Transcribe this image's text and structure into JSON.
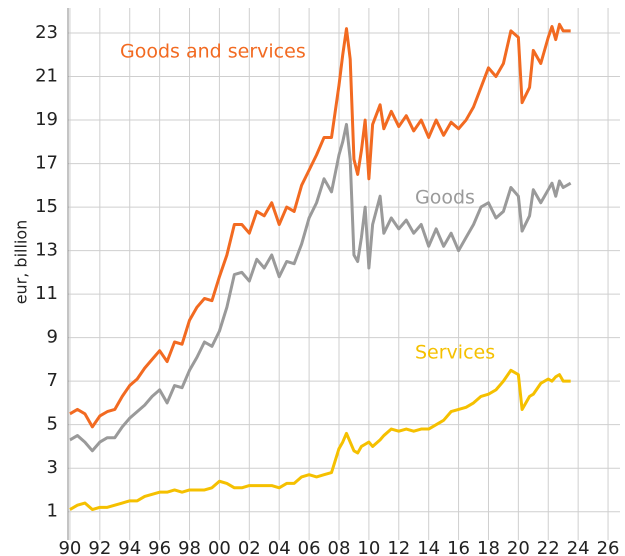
{
  "chart_data": {
    "type": "line",
    "y_label": "eur, billion",
    "x": [
      1990,
      1990.5,
      1991,
      1991.5,
      1992,
      1992.5,
      1993,
      1993.5,
      1994,
      1994.5,
      1995,
      1995.5,
      1996,
      1996.5,
      1997,
      1997.5,
      1998,
      1998.5,
      1999,
      1999.5,
      2000,
      2000.5,
      2001,
      2001.5,
      2002,
      2002.5,
      2003,
      2003.5,
      2004,
      2004.5,
      2005,
      2005.5,
      2006,
      2006.5,
      2007,
      2007.5,
      2008,
      2008.25,
      2008.5,
      2008.75,
      2009,
      2009.25,
      2009.5,
      2009.75,
      2010,
      2010.25,
      2010.75,
      2011,
      2011.5,
      2012,
      2012.5,
      2013,
      2013.5,
      2014,
      2014.5,
      2015,
      2015.5,
      2016,
      2016.5,
      2017,
      2017.5,
      2018,
      2018.5,
      2019,
      2019.5,
      2020,
      2020.25,
      2020.75,
      2021,
      2021.5,
      2022,
      2022.25,
      2022.5,
      2022.75,
      2023,
      2023.5
    ],
    "series": [
      {
        "name": "Goods and services",
        "color": "#f26a21",
        "values": [
          5.5,
          5.7,
          5.5,
          4.9,
          5.4,
          5.6,
          5.7,
          6.3,
          6.8,
          7.1,
          7.6,
          8.0,
          8.4,
          7.9,
          8.8,
          8.7,
          9.8,
          10.4,
          10.8,
          10.7,
          11.8,
          12.8,
          14.2,
          14.2,
          13.8,
          14.8,
          14.6,
          15.2,
          14.2,
          15.0,
          14.8,
          16.0,
          16.7,
          17.4,
          18.2,
          18.2,
          20.6,
          22.0,
          23.2,
          21.8,
          17.2,
          16.5,
          17.6,
          19.0,
          16.3,
          18.8,
          19.7,
          18.6,
          19.4,
          18.7,
          19.2,
          18.5,
          19.0,
          18.2,
          19.0,
          18.3,
          18.9,
          18.6,
          19.0,
          19.6,
          20.5,
          21.4,
          21.0,
          21.6,
          23.1,
          22.8,
          19.8,
          20.5,
          22.2,
          21.6,
          22.8,
          23.3,
          22.7,
          23.4,
          23.1,
          23.1
        ]
      },
      {
        "name": "Goods",
        "color": "#9a9a9a",
        "values": [
          4.3,
          4.5,
          4.2,
          3.8,
          4.2,
          4.4,
          4.4,
          4.9,
          5.3,
          5.6,
          5.9,
          6.3,
          6.6,
          6.0,
          6.8,
          6.7,
          7.5,
          8.1,
          8.8,
          8.6,
          9.3,
          10.4,
          11.9,
          12.0,
          11.6,
          12.6,
          12.2,
          12.8,
          11.8,
          12.5,
          12.4,
          13.3,
          14.5,
          15.2,
          16.3,
          15.7,
          17.4,
          18.0,
          18.8,
          17.2,
          12.8,
          12.5,
          13.6,
          15.0,
          12.2,
          14.2,
          15.5,
          13.8,
          14.5,
          14.0,
          14.4,
          13.8,
          14.2,
          13.2,
          14.0,
          13.2,
          13.8,
          13.0,
          13.6,
          14.2,
          15.0,
          15.2,
          14.5,
          14.8,
          15.9,
          15.5,
          13.9,
          14.6,
          15.8,
          15.2,
          15.8,
          16.1,
          15.5,
          16.2,
          15.9,
          16.1
        ]
      },
      {
        "name": "Services",
        "color": "#f5c000",
        "values": [
          1.1,
          1.3,
          1.4,
          1.1,
          1.2,
          1.2,
          1.3,
          1.4,
          1.5,
          1.5,
          1.7,
          1.8,
          1.9,
          1.9,
          2.0,
          1.9,
          2.0,
          2.0,
          2.0,
          2.1,
          2.4,
          2.3,
          2.1,
          2.1,
          2.2,
          2.2,
          2.2,
          2.2,
          2.1,
          2.3,
          2.3,
          2.6,
          2.7,
          2.6,
          2.7,
          2.8,
          3.9,
          4.2,
          4.6,
          4.2,
          3.8,
          3.7,
          4.0,
          4.1,
          4.2,
          4.0,
          4.3,
          4.5,
          4.8,
          4.7,
          4.8,
          4.7,
          4.8,
          4.8,
          5.0,
          5.2,
          5.6,
          5.7,
          5.8,
          6.0,
          6.3,
          6.4,
          6.6,
          7.0,
          7.5,
          7.3,
          5.7,
          6.3,
          6.4,
          6.9,
          7.1,
          7.0,
          7.2,
          7.3,
          7.0,
          7.0
        ]
      }
    ],
    "xlim": [
      1989.87,
      2026.8
    ],
    "xticks": [
      {
        "value": 1990,
        "label": "90"
      },
      {
        "value": 1992,
        "label": "92"
      },
      {
        "value": 1994,
        "label": "94"
      },
      {
        "value": 1996,
        "label": "96"
      },
      {
        "value": 1998,
        "label": "98"
      },
      {
        "value": 2000,
        "label": "00"
      },
      {
        "value": 2002,
        "label": "02"
      },
      {
        "value": 2004,
        "label": "04"
      },
      {
        "value": 2006,
        "label": "06"
      },
      {
        "value": 2008,
        "label": "08"
      },
      {
        "value": 2010,
        "label": "10"
      },
      {
        "value": 2012,
        "label": "12"
      },
      {
        "value": 2014,
        "label": "14"
      },
      {
        "value": 2016,
        "label": "16"
      },
      {
        "value": 2018,
        "label": "18"
      },
      {
        "value": 2020,
        "label": "20"
      },
      {
        "value": 2022,
        "label": "22"
      },
      {
        "value": 2024,
        "label": "24"
      },
      {
        "value": 2026,
        "label": "26"
      }
    ],
    "ylim": [
      -0.3,
      24.15
    ],
    "yticks": [
      1,
      3,
      5,
      7,
      9,
      11,
      13,
      15,
      17,
      19,
      21,
      23
    ],
    "grid": true
  }
}
